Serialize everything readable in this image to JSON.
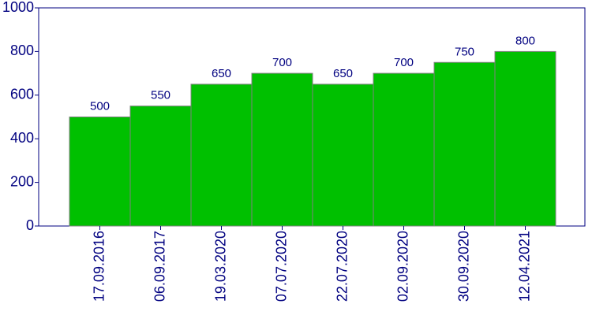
{
  "chart_data": {
    "type": "bar",
    "categories": [
      "17.09.2016",
      "06.09.2017",
      "19.03.2020",
      "07.07.2020",
      "22.07.2020",
      "02.09.2020",
      "30.09.2020",
      "12.04.2021"
    ],
    "values": [
      500,
      550,
      650,
      700,
      650,
      700,
      750,
      800
    ],
    "color": "#00c000",
    "ylim": [
      0,
      1000
    ],
    "yticks": [
      0,
      200,
      400,
      600,
      800,
      1000
    ],
    "grid": false
  }
}
